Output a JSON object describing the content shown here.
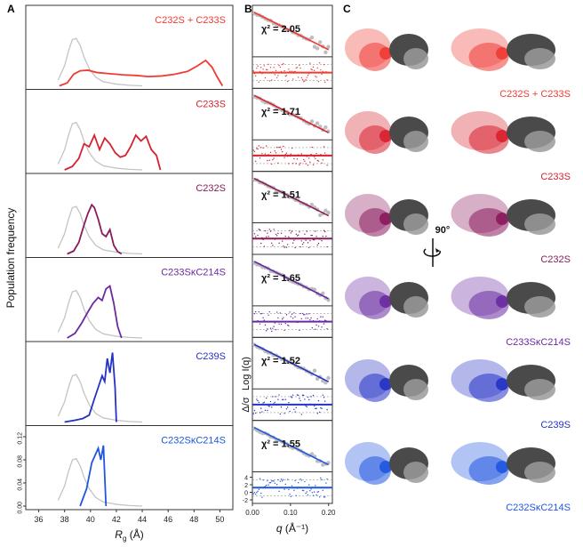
{
  "panels": {
    "a": "A",
    "b": "B",
    "c": "C"
  },
  "colors": {
    "reference": "#c4c4c4",
    "C232S + C233S": "#ef3b34",
    "C233S": "#d7212f",
    "C232S": "#8b1a5c",
    "C233SκC214S": "#6a2aa0",
    "C239S": "#2532c4",
    "C232SκC214S": "#1f56e0",
    "fit_line": "#888888"
  },
  "chart_data": [
    {
      "type": "line",
      "panel": "A",
      "xlabel": "R",
      "xlabel_sub": "g",
      "xlabel_unit": "(Å)",
      "ylabel": "Population frequency",
      "xlim": [
        35,
        51
      ],
      "xticks": [
        "36",
        "38",
        "40",
        "42",
        "44",
        "46",
        "48",
        "50"
      ],
      "yticks_bottom": [
        "0.00",
        "0.04",
        "0.08",
        "0.12"
      ],
      "ylim_bottom": [
        0,
        0.13
      ],
      "reference": {
        "x": [
          37.5,
          38.0,
          38.3,
          38.6,
          38.9,
          39.2,
          39.5,
          39.9,
          40.4,
          41.0,
          42.0,
          43.0,
          44.0
        ],
        "y": [
          0.01,
          0.035,
          0.06,
          0.08,
          0.082,
          0.07,
          0.05,
          0.03,
          0.015,
          0.007,
          0.003,
          0.001,
          0.0
        ]
      },
      "series": [
        {
          "name": "C232S + C233S",
          "x": [
            37.6,
            38.2,
            38.7,
            39.2,
            39.8,
            40.5,
            41.5,
            42.5,
            43.5,
            44.5,
            45.5,
            46.5,
            47.5,
            48.3,
            48.9,
            49.4,
            49.8,
            50.2
          ],
          "y": [
            0.0,
            0.005,
            0.02,
            0.026,
            0.027,
            0.023,
            0.021,
            0.019,
            0.018,
            0.016,
            0.017,
            0.02,
            0.025,
            0.035,
            0.044,
            0.032,
            0.015,
            0.0
          ]
        },
        {
          "name": "C233S",
          "x": [
            38.0,
            38.6,
            39.1,
            39.5,
            39.9,
            40.3,
            40.7,
            41.1,
            41.5,
            41.9,
            42.3,
            42.7,
            43.1,
            43.5,
            43.9,
            44.3,
            44.7,
            45.1,
            45.4
          ],
          "y": [
            0.0,
            0.006,
            0.02,
            0.045,
            0.04,
            0.06,
            0.035,
            0.055,
            0.045,
            0.03,
            0.022,
            0.025,
            0.04,
            0.06,
            0.05,
            0.058,
            0.035,
            0.025,
            0.0
          ]
        },
        {
          "name": "C232S",
          "x": [
            38.2,
            38.7,
            39.1,
            39.5,
            39.8,
            40.1,
            40.3,
            40.6,
            40.9,
            41.2,
            41.5,
            41.8,
            42.1,
            42.4
          ],
          "y": [
            0.0,
            0.005,
            0.02,
            0.05,
            0.07,
            0.085,
            0.08,
            0.06,
            0.035,
            0.03,
            0.042,
            0.015,
            0.004,
            0.0
          ]
        },
        {
          "name": "C233SκC214S",
          "x": [
            38.2,
            38.8,
            39.3,
            39.8,
            40.2,
            40.6,
            40.9,
            41.2,
            41.5,
            41.8,
            42.1,
            42.4
          ],
          "y": [
            0.0,
            0.008,
            0.025,
            0.045,
            0.06,
            0.07,
            0.065,
            0.085,
            0.09,
            0.06,
            0.02,
            0.0
          ]
        },
        {
          "name": "C239S",
          "x": [
            38.0,
            38.8,
            39.4,
            39.9,
            40.3,
            40.6,
            40.9,
            41.1,
            41.3,
            41.5,
            41.7,
            41.9,
            42.0
          ],
          "y": [
            0.0,
            0.003,
            0.006,
            0.012,
            0.04,
            0.06,
            0.08,
            0.07,
            0.11,
            0.085,
            0.12,
            0.06,
            0.0
          ]
        },
        {
          "name": "C232SκC214S",
          "x": [
            39.2,
            39.7,
            40.1,
            40.4,
            40.6,
            40.8,
            41.0,
            41.2
          ],
          "y": [
            0.0,
            0.03,
            0.075,
            0.09,
            0.1,
            0.08,
            0.105,
            0.0
          ]
        }
      ]
    },
    {
      "type": "scatter",
      "panel": "B",
      "xlabel": "q",
      "xlabel_unit": "(Å⁻¹)",
      "ylabel": "Log I(q)",
      "ylabel2": "Δ/σ",
      "xlim": [
        0,
        0.21
      ],
      "xticks": [
        "0.00",
        "0.10",
        "0.20"
      ],
      "resid_ticks": [
        "4",
        "2",
        "0",
        "-2"
      ],
      "chi2": [
        "χ² = 2.05",
        "χ² = 1.71",
        "χ² = 1.51",
        "χ² = 1.65",
        "χ² = 1.52",
        "χ² = 1.55"
      ]
    }
  ],
  "structures": {
    "rotation_label": "90°",
    "labels": [
      "C232S + C233S",
      "C233S",
      "C232S",
      "C233SκC214S",
      "C239S",
      "C232SκC214S"
    ]
  }
}
